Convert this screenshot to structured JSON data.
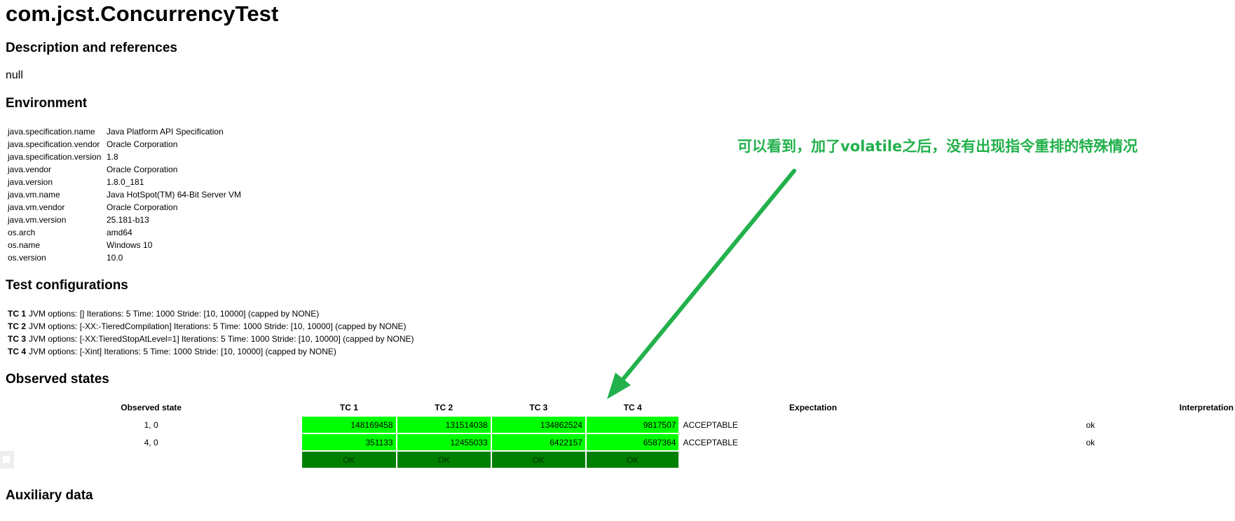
{
  "title": "com.jcst.ConcurrencyTest",
  "sections": {
    "description": "Description and references",
    "environment": "Environment",
    "test_configurations": "Test configurations",
    "observed_states": "Observed states",
    "auxiliary": "Auxiliary data"
  },
  "description_text": "null",
  "environment": [
    {
      "key": "java.specification.name",
      "value": "Java Platform API Specification"
    },
    {
      "key": "java.specification.vendor",
      "value": "Oracle Corporation"
    },
    {
      "key": "java.specification.version",
      "value": "1.8"
    },
    {
      "key": "java.vendor",
      "value": "Oracle Corporation"
    },
    {
      "key": "java.version",
      "value": "1.8.0_181"
    },
    {
      "key": "java.vm.name",
      "value": "Java HotSpot(TM) 64-Bit Server VM"
    },
    {
      "key": "java.vm.vendor",
      "value": "Oracle Corporation"
    },
    {
      "key": "java.vm.version",
      "value": "25.181-b13"
    },
    {
      "key": "os.arch",
      "value": "amd64"
    },
    {
      "key": "os.name",
      "value": "Windows 10"
    },
    {
      "key": "os.version",
      "value": "10.0"
    }
  ],
  "test_configs": [
    {
      "id": "TC 1",
      "text": "JVM options: [] Iterations: 5 Time: 1000 Stride: [10, 10000] (capped by NONE)"
    },
    {
      "id": "TC 2",
      "text": "JVM options: [-XX:-TieredCompilation] Iterations: 5 Time: 1000 Stride: [10, 10000] (capped by NONE)"
    },
    {
      "id": "TC 3",
      "text": "JVM options: [-XX:TieredStopAtLevel=1] Iterations: 5 Time: 1000 Stride: [10, 10000] (capped by NONE)"
    },
    {
      "id": "TC 4",
      "text": "JVM options: [-Xint] Iterations: 5 Time: 1000 Stride: [10, 10000] (capped by NONE)"
    }
  ],
  "observed": {
    "headers": {
      "state": "Observed state",
      "tc1": "TC 1",
      "tc2": "TC 2",
      "tc3": "TC 3",
      "tc4": "TC 4",
      "expectation": "Expectation",
      "interpretation": "Interpretation"
    },
    "rows": [
      {
        "state": "1, 0",
        "tc": [
          "148169458",
          "131514038",
          "134862524",
          "9817507"
        ],
        "expectation": "ACCEPTABLE",
        "interpretation": "ok"
      },
      {
        "state": "4, 0",
        "tc": [
          "351133",
          "12455033",
          "6422157",
          "6587364"
        ],
        "expectation": "ACCEPTABLE",
        "interpretation": "ok"
      }
    ],
    "status": [
      "OK",
      "OK",
      "OK",
      "OK"
    ]
  },
  "annotation": "可以看到，加了volatile之后，没有出现指令重排的特殊情况",
  "colors": {
    "pass_cell": "#00ff00",
    "ok_cell": "#008000",
    "annotation": "#22b14c"
  }
}
